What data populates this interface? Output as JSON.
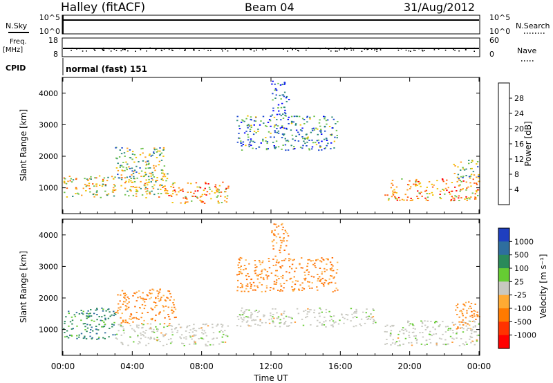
{
  "header": {
    "station": "Halley (fitACF)",
    "beam": "Beam 04",
    "date": "31/Aug/2012"
  },
  "top_panels": {
    "nsky_label": "N.Sky",
    "nsky_ticks": [
      "10^5",
      "10^0"
    ],
    "nsearch_label": "N.Search",
    "nsearch_ticks": [
      "10^5",
      "10^0"
    ],
    "freq_label": "Freq.",
    "freq_unit": "[MHz]",
    "freq_ticks": [
      "18",
      "8"
    ],
    "nave_label": "Nave",
    "nave_ticks": [
      "60",
      "0"
    ],
    "cpid_label": "CPID",
    "cpid_value": "normal (fast) 151"
  },
  "chart_data": [
    {
      "type": "heatmap",
      "panel": "power",
      "ylabel": "Slant Range [km]",
      "ylim": [
        180,
        4500
      ],
      "yticks": [
        1000,
        2000,
        3000,
        4000
      ],
      "xlim_hours": [
        0,
        24
      ],
      "colorbar_label": "Power [dB]",
      "colorbar_ticks": [
        4,
        8,
        12,
        16,
        20,
        24,
        28
      ],
      "colorbar_colors": [
        "#0000ff",
        "#1f4bd0",
        "#2c8a7a",
        "#6cc04a",
        "#f2c200",
        "#ff9a1a",
        "#ff5a0a",
        "#ff0000"
      ],
      "regions": [
        {
          "t0": 0.0,
          "t1": 6.0,
          "r0": 700,
          "r1": 1400,
          "level": 20
        },
        {
          "t0": 3.0,
          "t1": 6.0,
          "r0": 1200,
          "r1": 2300,
          "level": 16
        },
        {
          "t0": 6.0,
          "t1": 9.6,
          "r0": 500,
          "r1": 1200,
          "level": 24
        },
        {
          "t0": 10.0,
          "t1": 15.8,
          "r0": 2200,
          "r1": 3300,
          "level": 12
        },
        {
          "t0": 12.0,
          "t1": 13.0,
          "r0": 3300,
          "r1": 4400,
          "level": 8
        },
        {
          "t0": 18.5,
          "t1": 24.0,
          "r0": 600,
          "r1": 1300,
          "level": 22
        },
        {
          "t0": 22.5,
          "t1": 24.0,
          "r0": 1300,
          "r1": 1900,
          "level": 16
        }
      ]
    },
    {
      "type": "heatmap",
      "panel": "velocity",
      "ylabel": "Slant Range [km]",
      "ylim": [
        180,
        4500
      ],
      "yticks": [
        1000,
        2000,
        3000,
        4000
      ],
      "xlabel": "Time UT",
      "xticks": [
        "00:00",
        "04:00",
        "08:00",
        "12:00",
        "16:00",
        "20:00",
        "00:00"
      ],
      "xlim_hours": [
        0,
        24
      ],
      "colorbar_label": "Velocity [m s⁻¹]",
      "colorbar_ticks": [
        1000,
        500,
        100,
        25,
        -25,
        -100,
        -500,
        -1000
      ],
      "colorbar_colors": [
        "#1f3fbf",
        "#2e6e9e",
        "#2a8a5a",
        "#66cc33",
        "#c8c8c0",
        "#ffaa33",
        "#ff7a00",
        "#ff3300",
        "#ff0000"
      ],
      "regions": [
        {
          "t0": 0.0,
          "t1": 3.0,
          "r0": 700,
          "r1": 1700,
          "level": 500
        },
        {
          "t0": 3.0,
          "t1": 6.5,
          "r0": 1200,
          "r1": 2300,
          "level": -100
        },
        {
          "t0": 3.0,
          "t1": 9.5,
          "r0": 500,
          "r1": 1200,
          "level": 0
        },
        {
          "t0": 10.0,
          "t1": 15.8,
          "r0": 2200,
          "r1": 3300,
          "level": -500
        },
        {
          "t0": 12.0,
          "t1": 13.0,
          "r0": 3300,
          "r1": 4400,
          "level": -500
        },
        {
          "t0": 10.0,
          "t1": 18.0,
          "r0": 1100,
          "r1": 1700,
          "level": 0
        },
        {
          "t0": 18.5,
          "t1": 24.0,
          "r0": 500,
          "r1": 1300,
          "level": 0
        },
        {
          "t0": 22.5,
          "t1": 24.0,
          "r0": 1000,
          "r1": 1900,
          "level": -100
        }
      ]
    }
  ]
}
